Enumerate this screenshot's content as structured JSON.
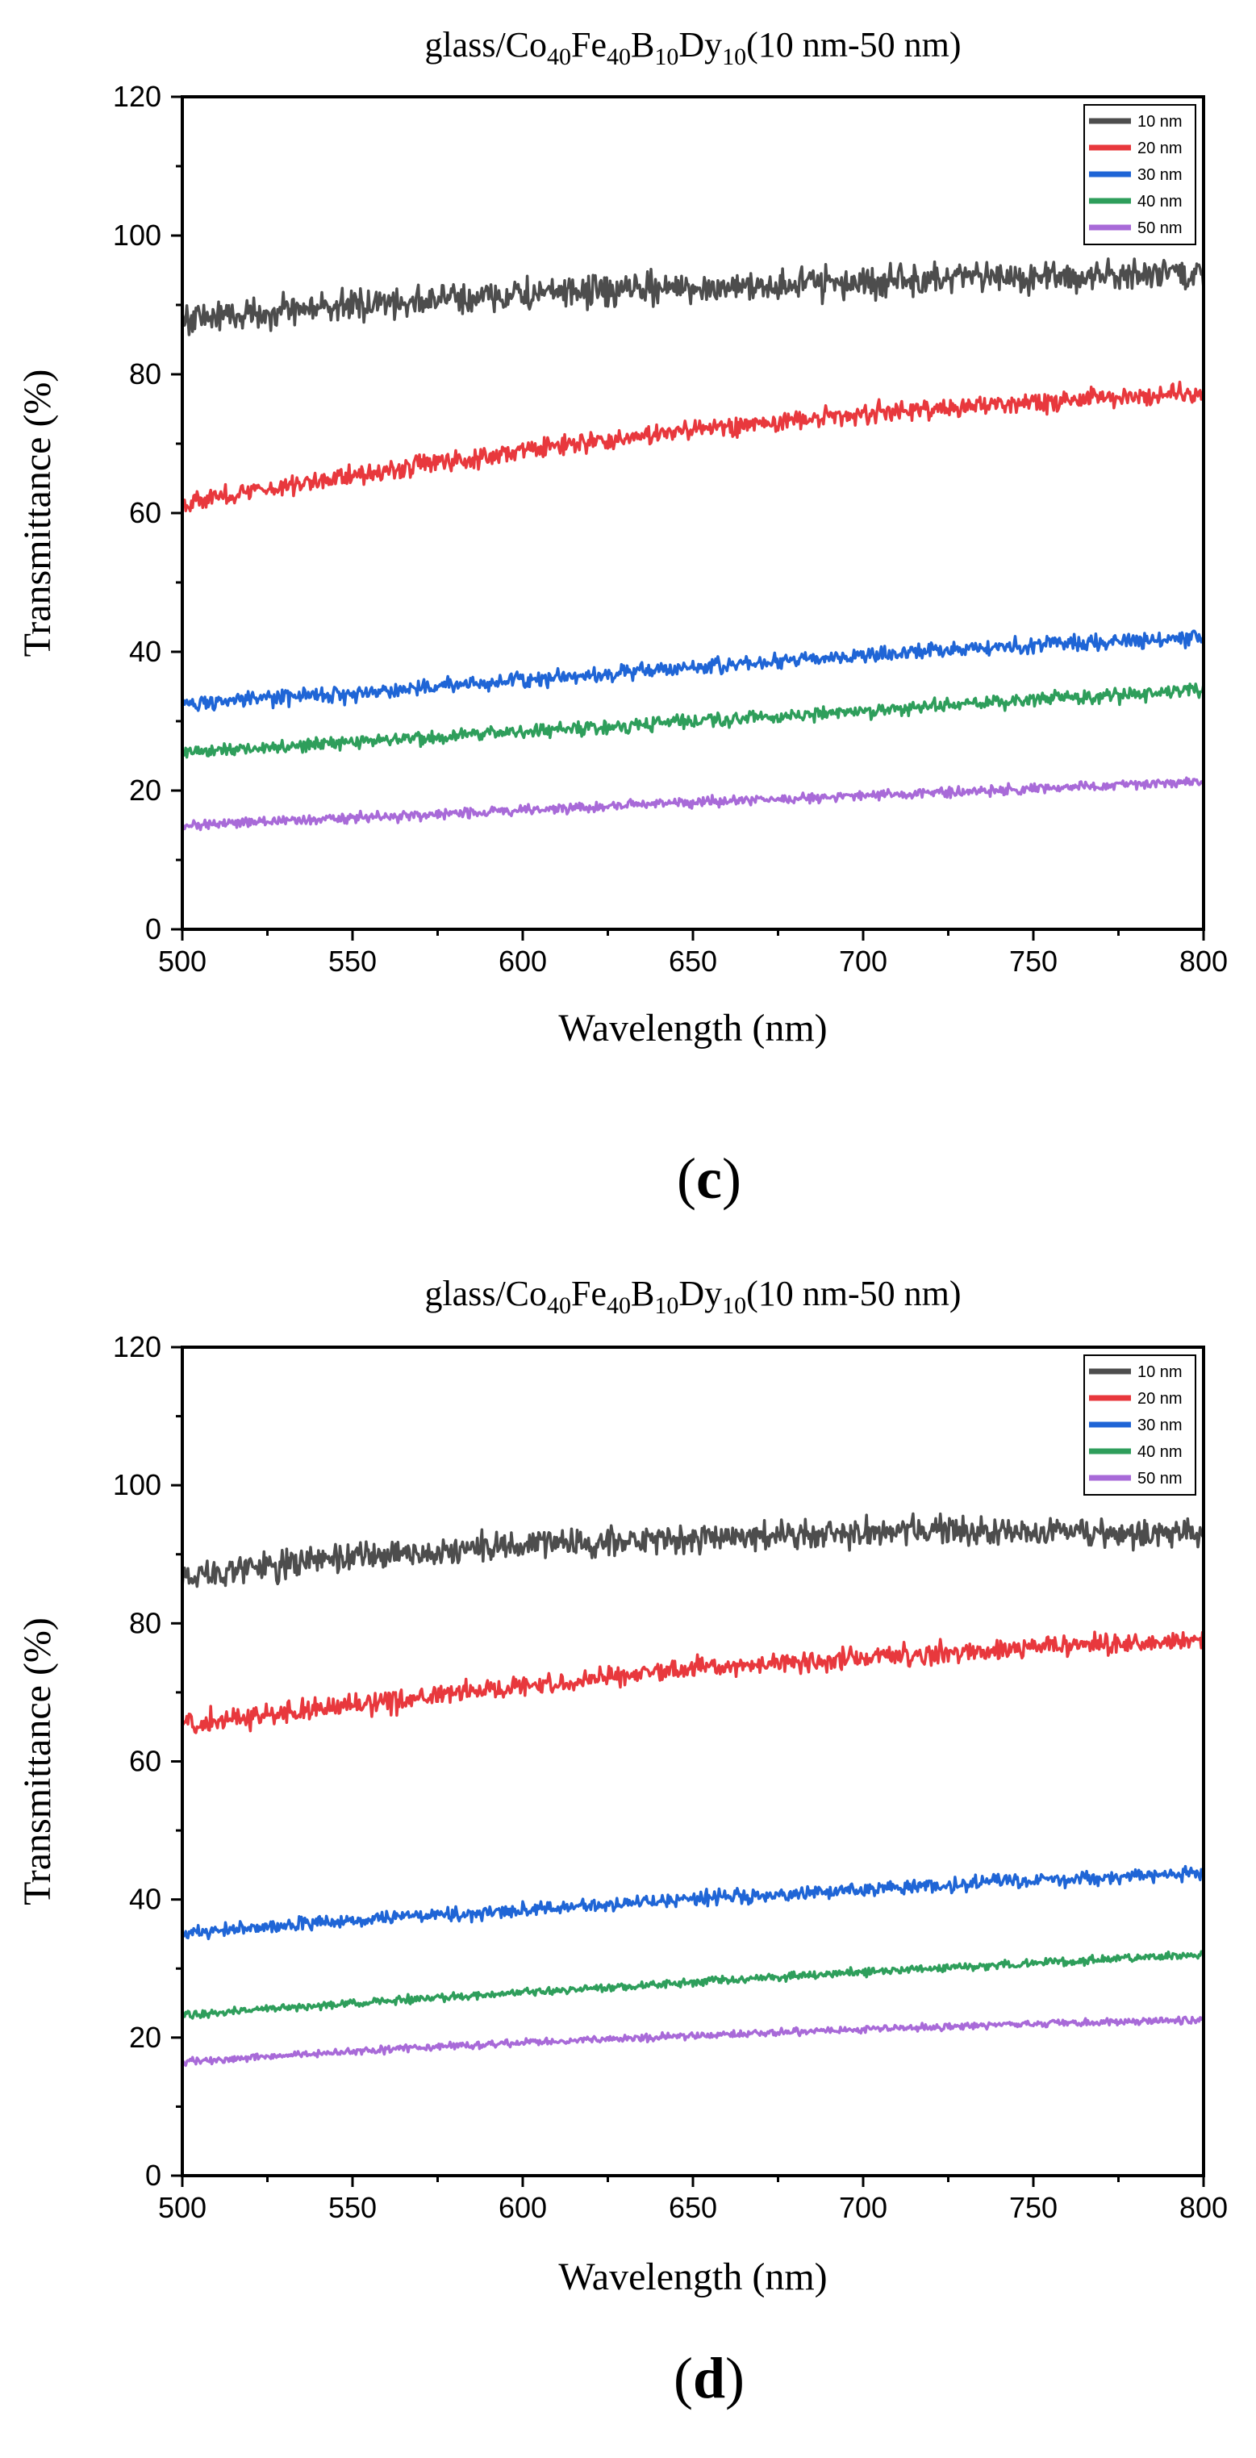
{
  "chart_data": [
    {
      "type": "line",
      "panel_label": "c",
      "title": {
        "prefix": "glass/Co",
        "sub1": "40",
        "mid1": "Fe",
        "sub2": "40",
        "mid2": "B",
        "sub3": "10",
        "mid3": "Dy",
        "sub4": "10",
        "suffix": "(10 nm-50 nm)"
      },
      "xlabel": "Wavelength (nm)",
      "ylabel": "Transmittance (%)",
      "xlim": [
        500,
        800
      ],
      "ylim": [
        0,
        120
      ],
      "xticks": [
        "500",
        "550",
        "600",
        "650",
        "700",
        "750",
        "800"
      ],
      "yticks": [
        "0",
        "20",
        "40",
        "60",
        "80",
        "100",
        "120"
      ],
      "legend_position": "top-right",
      "series": [
        {
          "name": "10 nm",
          "color": "#4d4d4d",
          "x": [
            500,
            550,
            600,
            650,
            700,
            750,
            800
          ],
          "values": [
            88,
            90,
            91.5,
            92.5,
            93.3,
            94,
            94.5
          ],
          "noise": 1.6
        },
        {
          "name": "20 nm",
          "color": "#e8383d",
          "x": [
            500,
            550,
            600,
            650,
            700,
            750,
            800
          ],
          "values": [
            61.5,
            65.5,
            69,
            72,
            74.3,
            76,
            77.5
          ],
          "noise": 1.0
        },
        {
          "name": "30 nm",
          "color": "#1f65d6",
          "x": [
            500,
            550,
            600,
            650,
            700,
            750,
            800
          ],
          "values": [
            32.5,
            34,
            36,
            37.8,
            39.5,
            41,
            42
          ],
          "noise": 0.8
        },
        {
          "name": "40 nm",
          "color": "#2e9e5b",
          "x": [
            500,
            550,
            600,
            650,
            700,
            750,
            800
          ],
          "values": [
            25.5,
            27,
            28.5,
            30,
            31.5,
            33,
            34.5
          ],
          "noise": 0.7
        },
        {
          "name": "50 nm",
          "color": "#a86ad8",
          "x": [
            500,
            550,
            600,
            650,
            700,
            750,
            800
          ],
          "values": [
            15,
            16,
            17.2,
            18.3,
            19.3,
            20.3,
            21.3
          ],
          "noise": 0.5
        }
      ]
    },
    {
      "type": "line",
      "panel_label": "d",
      "title": {
        "prefix": "glass/Co",
        "sub1": "40",
        "mid1": "Fe",
        "sub2": "40",
        "mid2": "B",
        "sub3": "10",
        "mid3": "Dy",
        "sub4": "10",
        "suffix": "(10 nm-50 nm)"
      },
      "xlabel": "Wavelength (nm)",
      "ylabel": "Transmittance (%)",
      "xlim": [
        500,
        800
      ],
      "ylim": [
        0,
        120
      ],
      "xticks": [
        "500",
        "550",
        "600",
        "650",
        "700",
        "750",
        "800"
      ],
      "yticks": [
        "0",
        "20",
        "40",
        "60",
        "80",
        "100",
        "120"
      ],
      "legend_position": "top-right",
      "series": [
        {
          "name": "10 nm",
          "color": "#4d4d4d",
          "x": [
            500,
            550,
            600,
            650,
            700,
            750,
            800
          ],
          "values": [
            87,
            89.5,
            91.2,
            92.3,
            93.2,
            93.2,
            93
          ],
          "noise": 1.5
        },
        {
          "name": "20 nm",
          "color": "#e8383d",
          "x": [
            500,
            550,
            600,
            650,
            700,
            750,
            800
          ],
          "values": [
            65.5,
            68,
            71,
            73.5,
            75,
            76.5,
            77.5
          ],
          "noise": 1.1
        },
        {
          "name": "30 nm",
          "color": "#1f65d6",
          "x": [
            500,
            550,
            600,
            650,
            700,
            750,
            800
          ],
          "values": [
            35,
            37,
            38.5,
            40,
            41.5,
            42.8,
            43.8
          ],
          "noise": 0.7
        },
        {
          "name": "40 nm",
          "color": "#2e9e5b",
          "x": [
            500,
            550,
            600,
            650,
            700,
            750,
            800
          ],
          "values": [
            23.3,
            25,
            26.5,
            28,
            29.5,
            30.8,
            32
          ],
          "noise": 0.4
        },
        {
          "name": "50 nm",
          "color": "#a86ad8",
          "x": [
            500,
            550,
            600,
            650,
            700,
            750,
            800
          ],
          "values": [
            16.5,
            18,
            19.3,
            20.3,
            21.2,
            22,
            22.6
          ],
          "noise": 0.35
        }
      ]
    }
  ]
}
